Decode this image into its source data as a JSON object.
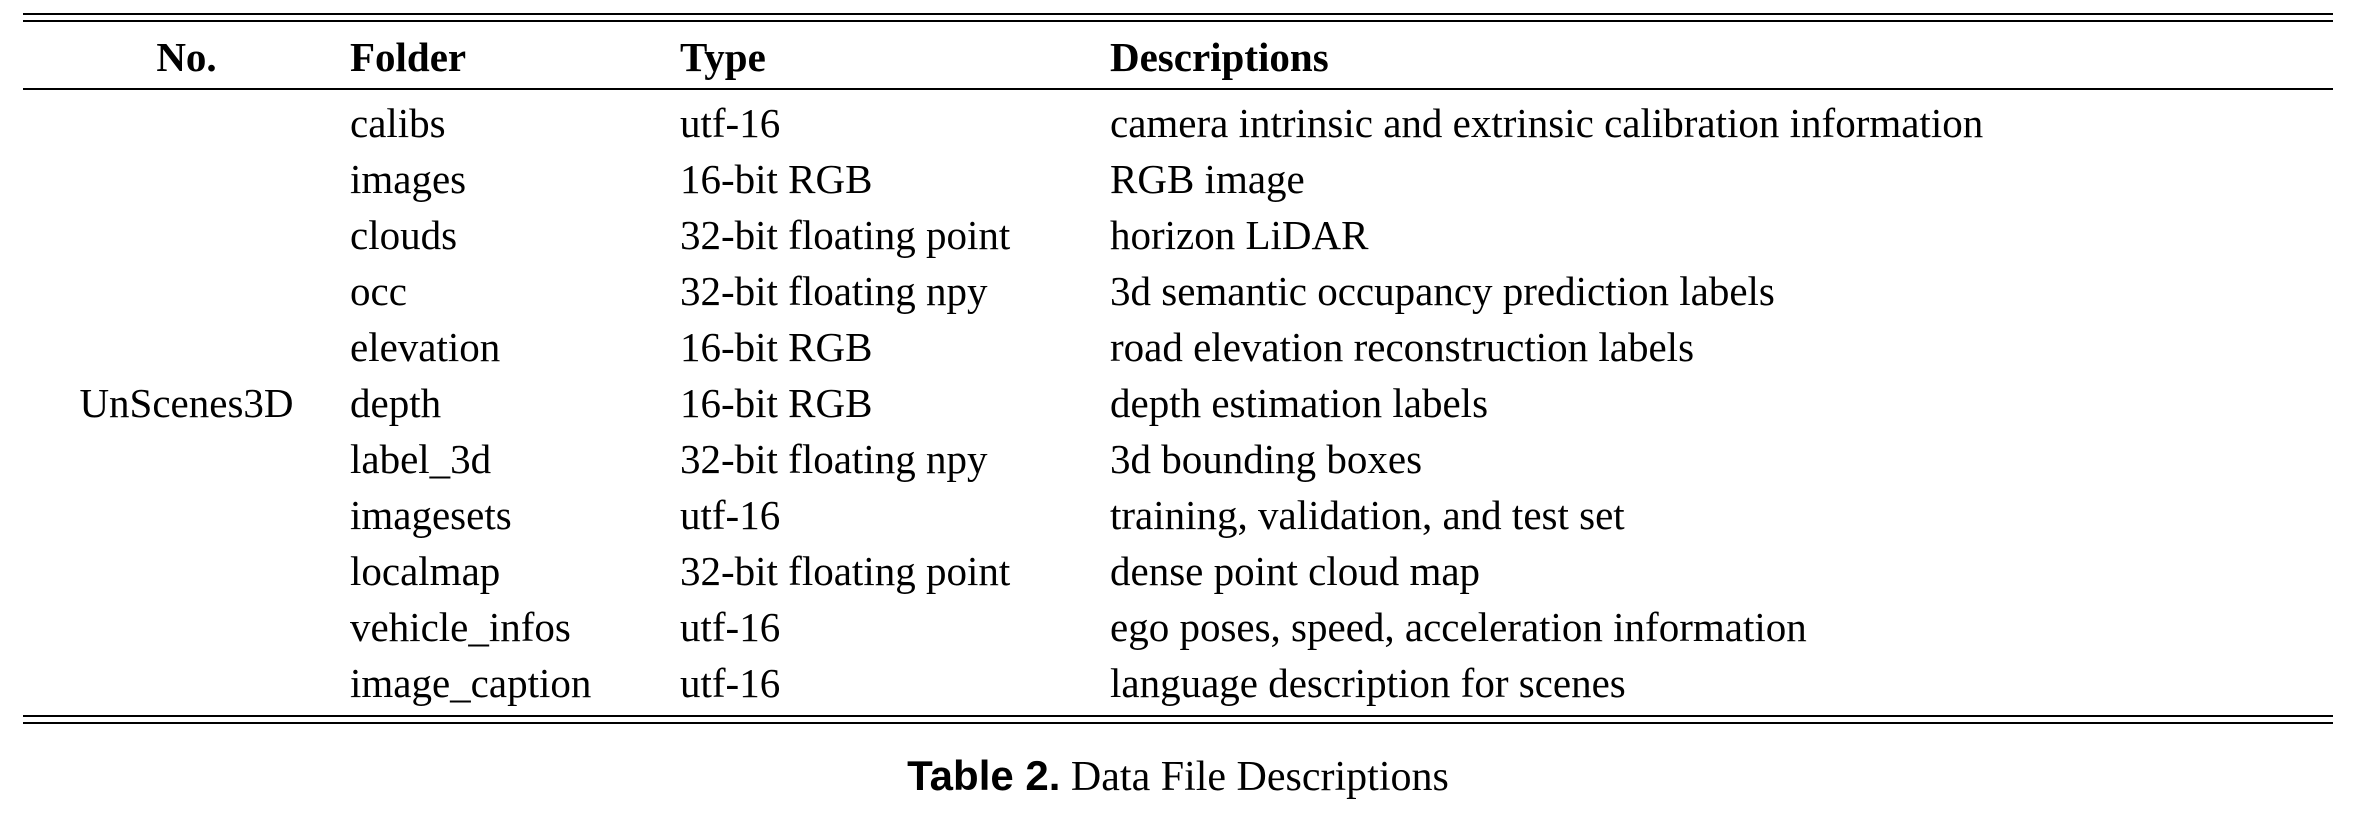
{
  "table": {
    "headers": {
      "no": "No.",
      "folder": "Folder",
      "type": "Type",
      "descriptions": "Descriptions"
    },
    "group_label": "UnScenes3D",
    "rows": [
      {
        "folder": "calibs",
        "type": "utf-16",
        "description": "camera intrinsic and extrinsic calibration information"
      },
      {
        "folder": "images",
        "type": "16-bit RGB",
        "description": "RGB image"
      },
      {
        "folder": "clouds",
        "type": "32-bit floating point",
        "description": "horizon LiDAR"
      },
      {
        "folder": "occ",
        "type": "32-bit floating npy",
        "description": "3d semantic occupancy prediction labels"
      },
      {
        "folder": "elevation",
        "type": "16-bit RGB",
        "description": "road elevation reconstruction labels"
      },
      {
        "folder": "depth",
        "type": "16-bit RGB",
        "description": "depth estimation labels"
      },
      {
        "folder": "label_3d",
        "type": "32-bit floating npy",
        "description": "3d bounding boxes"
      },
      {
        "folder": "imagesets",
        "type": "utf-16",
        "description": "training, validation, and test set"
      },
      {
        "folder": "localmap",
        "type": "32-bit floating point",
        "description": "dense point cloud map"
      },
      {
        "folder": "vehicle_infos",
        "type": "utf-16",
        "description": "ego poses, speed, acceleration information"
      },
      {
        "folder": "image_caption",
        "type": "utf-16",
        "description": "language description for scenes"
      }
    ]
  },
  "caption": {
    "label": "Table 2.",
    "text": "Data File Descriptions"
  }
}
